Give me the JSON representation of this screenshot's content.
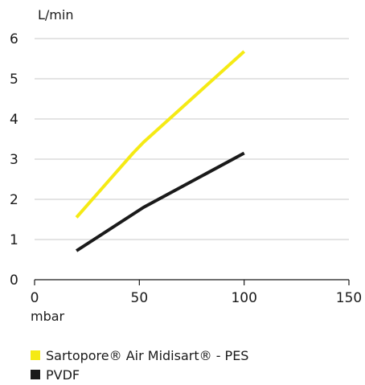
{
  "chart_data": {
    "type": "line",
    "title": "",
    "xlabel": "mbar",
    "ylabel": "L/min",
    "xlim": [
      0,
      150
    ],
    "ylim": [
      0,
      6
    ],
    "xticks": [
      "0",
      "50",
      "100",
      "150"
    ],
    "yticks": [
      "0",
      "1",
      "2",
      "3",
      "4",
      "5",
      "6"
    ],
    "grid": "horizontal",
    "legend": "bottom-left",
    "series": [
      {
        "name": "Sartopore® Air Midisart® - PES",
        "color": "#f5ea14",
        "points": [
          [
            20,
            1.55
          ],
          [
            47,
            3.15
          ],
          [
            52,
            3.42
          ],
          [
            100,
            5.68
          ]
        ]
      },
      {
        "name": "PVDF",
        "color": "#1a1a1a",
        "points": [
          [
            20,
            0.72
          ],
          [
            52,
            1.8
          ],
          [
            100,
            3.15
          ]
        ]
      }
    ]
  }
}
